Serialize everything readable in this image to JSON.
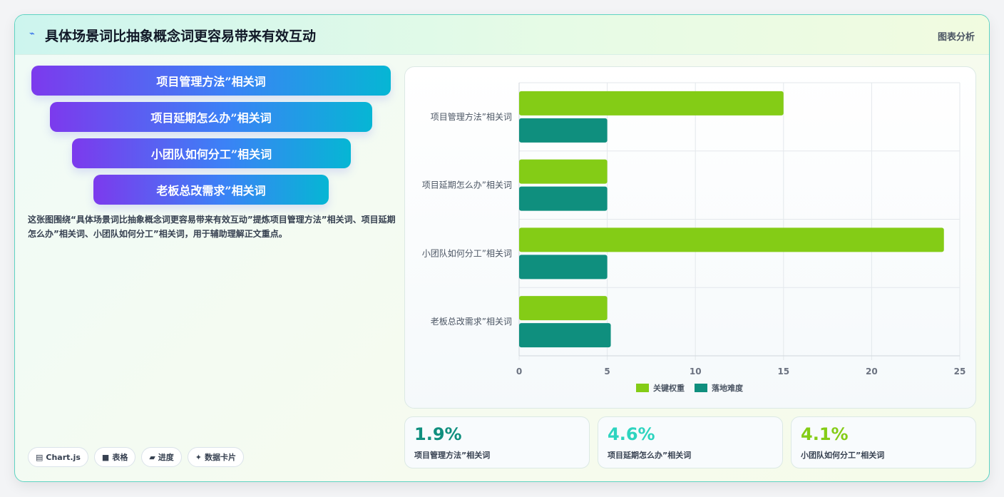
{
  "header": {
    "title": "具体场景词比抽象概念词更容易带来有效互动",
    "right_label": "图表分析"
  },
  "pills": [
    "项目管理方法”相关词",
    "项目延期怎么办”相关词",
    "小团队如何分工”相关词",
    "老板总改需求”相关词"
  ],
  "description": "这张图围绕“具体场景词比抽象概念词更容易带来有效互动”提炼项目管理方法”相关词、项目延期怎么办”相关词、小团队如何分工”相关词，用于辅助理解正文重点。",
  "tags": [
    {
      "icon": "chart-icon",
      "glyph": "▤",
      "label": "Chart.js"
    },
    {
      "icon": "table-icon",
      "glyph": "■",
      "label": "表格"
    },
    {
      "icon": "progress-icon",
      "glyph": "▰",
      "label": "进度"
    },
    {
      "icon": "sparkle-icon",
      "glyph": "✦",
      "label": "数据卡片"
    }
  ],
  "stats": [
    {
      "value": "1.9%",
      "label": "项目管理方法”相关词",
      "color": "#0f8f7e"
    },
    {
      "value": "4.6%",
      "label": "项目延期怎么办”相关词",
      "color": "#2dd4bf"
    },
    {
      "value": "4.1%",
      "label": "小团队如何分工”相关词",
      "color": "#84cc16"
    }
  ],
  "chart_data": {
    "type": "bar",
    "orientation": "horizontal",
    "categories": [
      "项目管理方法”相关词",
      "项目延期怎么办”相关词",
      "小团队如何分工”相关词",
      "老板总改需求”相关词"
    ],
    "series": [
      {
        "name": "关键权重",
        "values": [
          15,
          5,
          24.1,
          5
        ],
        "color": "#84cc16"
      },
      {
        "name": "落地难度",
        "values": [
          5,
          5,
          5,
          5.2
        ],
        "color": "#0f8f7e"
      }
    ],
    "xlim": [
      0,
      25
    ],
    "xticks": [
      "0",
      "5",
      "10",
      "15",
      "20",
      "25"
    ],
    "grid": true,
    "legend": "bottom"
  }
}
